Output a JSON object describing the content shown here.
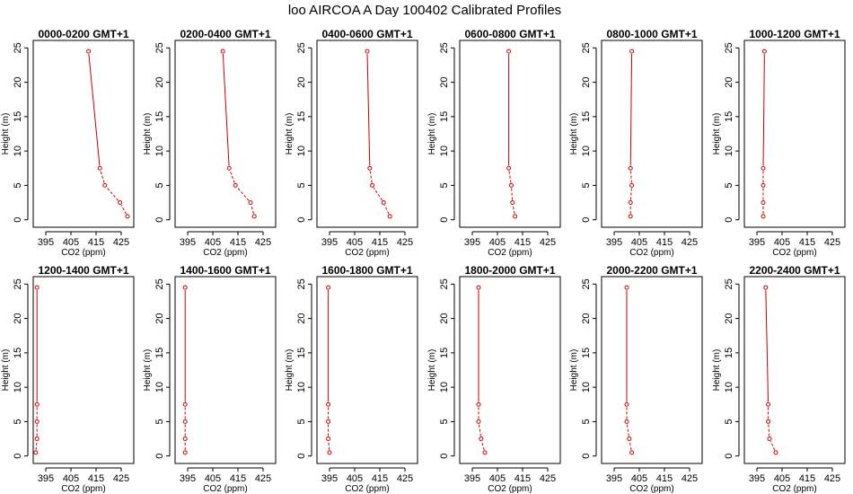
{
  "window_title": "loo AIRCOA A  Day 100402  Calibrated Profiles",
  "colors": {
    "series": "#cc0000",
    "axes": "#000000",
    "background": "#ffffff"
  },
  "chart_data": [
    {
      "type": "line",
      "title": "0000-0200 GMT+1",
      "xlabel": "CO2 (ppm)",
      "ylabel": "Height (m)",
      "xlim": [
        390,
        430
      ],
      "ylim": [
        0,
        25
      ],
      "xticks": [
        395,
        405,
        415,
        425
      ],
      "yticks": [
        0,
        5,
        10,
        15,
        20,
        25
      ],
      "x": [
        427.5,
        424.5,
        418.5,
        416.5,
        412
      ],
      "y": [
        0.5,
        2.5,
        5,
        7.5,
        24.5
      ]
    },
    {
      "type": "line",
      "title": "0200-0400 GMT+1",
      "xlabel": "CO2 (ppm)",
      "ylabel": "Height (m)",
      "xlim": [
        390,
        430
      ],
      "ylim": [
        0,
        25
      ],
      "xticks": [
        395,
        405,
        415,
        425
      ],
      "yticks": [
        0,
        5,
        10,
        15,
        20,
        25
      ],
      "x": [
        421.5,
        420,
        414,
        411.5,
        409
      ],
      "y": [
        0.5,
        2.5,
        5,
        7.5,
        24.5
      ]
    },
    {
      "type": "line",
      "title": "0400-0600 GMT+1",
      "xlabel": "CO2 (ppm)",
      "ylabel": "Height (m)",
      "xlim": [
        390,
        430
      ],
      "ylim": [
        0,
        25
      ],
      "xticks": [
        395,
        405,
        415,
        425
      ],
      "yticks": [
        0,
        5,
        10,
        15,
        20,
        25
      ],
      "x": [
        419,
        416.5,
        412,
        411,
        410
      ],
      "y": [
        0.5,
        2.5,
        5,
        7.5,
        24.5
      ]
    },
    {
      "type": "line",
      "title": "0600-0800 GMT+1",
      "xlabel": "CO2 (ppm)",
      "ylabel": "Height (m)",
      "xlim": [
        390,
        430
      ],
      "ylim": [
        0,
        25
      ],
      "xticks": [
        395,
        405,
        415,
        425
      ],
      "yticks": [
        0,
        5,
        10,
        15,
        20,
        25
      ],
      "x": [
        412,
        411,
        410.5,
        409.5,
        409.5
      ],
      "y": [
        0.5,
        2.5,
        5,
        7.5,
        24.5
      ]
    },
    {
      "type": "line",
      "title": "0800-1000 GMT+1",
      "xlabel": "CO2 (ppm)",
      "ylabel": "Height (m)",
      "xlim": [
        390,
        430
      ],
      "ylim": [
        0,
        25
      ],
      "xticks": [
        395,
        405,
        415,
        425
      ],
      "yticks": [
        0,
        5,
        10,
        15,
        20,
        25
      ],
      "x": [
        401.5,
        401.5,
        402,
        401.5,
        402
      ],
      "y": [
        0.5,
        2.5,
        5,
        7.5,
        24.5
      ]
    },
    {
      "type": "line",
      "title": "1000-1200 GMT+1",
      "xlabel": "CO2 (ppm)",
      "ylabel": "Height (m)",
      "xlim": [
        390,
        430
      ],
      "ylim": [
        0,
        25
      ],
      "xticks": [
        395,
        405,
        415,
        425
      ],
      "yticks": [
        0,
        5,
        10,
        15,
        20,
        25
      ],
      "x": [
        397.5,
        397.5,
        397.5,
        397.5,
        398
      ],
      "y": [
        0.5,
        2.5,
        5,
        7.5,
        24.5
      ]
    },
    {
      "type": "line",
      "title": "1200-1400 GMT+1",
      "xlabel": "CO2 (ppm)",
      "ylabel": "Height (m)",
      "xlim": [
        390,
        430
      ],
      "ylim": [
        0,
        25
      ],
      "xticks": [
        395,
        405,
        415,
        425
      ],
      "yticks": [
        0,
        5,
        10,
        15,
        20,
        25
      ],
      "x": [
        391,
        391.5,
        391.5,
        391.5,
        391.5
      ],
      "y": [
        0.5,
        2.5,
        5,
        7.5,
        24.5
      ]
    },
    {
      "type": "line",
      "title": "1400-1600 GMT+1",
      "xlabel": "CO2 (ppm)",
      "ylabel": "Height (m)",
      "xlim": [
        390,
        430
      ],
      "ylim": [
        0,
        25
      ],
      "xticks": [
        395,
        405,
        415,
        425
      ],
      "yticks": [
        0,
        5,
        10,
        15,
        20,
        25
      ],
      "x": [
        394,
        394,
        394,
        394,
        394
      ],
      "y": [
        0.5,
        2.5,
        5,
        7.5,
        24.5
      ]
    },
    {
      "type": "line",
      "title": "1600-1800 GMT+1",
      "xlabel": "CO2 (ppm)",
      "ylabel": "Height (m)",
      "xlim": [
        390,
        430
      ],
      "ylim": [
        0,
        25
      ],
      "xticks": [
        395,
        405,
        415,
        425
      ],
      "yticks": [
        0,
        5,
        10,
        15,
        20,
        25
      ],
      "x": [
        395,
        394.5,
        394.5,
        394.5,
        394.5
      ],
      "y": [
        0.5,
        2.5,
        5,
        7.5,
        24.5
      ]
    },
    {
      "type": "line",
      "title": "1800-2000 GMT+1",
      "xlabel": "CO2 (ppm)",
      "ylabel": "Height (m)",
      "xlim": [
        390,
        430
      ],
      "ylim": [
        0,
        25
      ],
      "xticks": [
        395,
        405,
        415,
        425
      ],
      "yticks": [
        0,
        5,
        10,
        15,
        20,
        25
      ],
      "x": [
        400,
        398.5,
        397.5,
        397.5,
        397.5
      ],
      "y": [
        0.5,
        2.5,
        5,
        7.5,
        24.5
      ]
    },
    {
      "type": "line",
      "title": "2000-2200 GMT+1",
      "xlabel": "CO2 (ppm)",
      "ylabel": "Height (m)",
      "xlim": [
        390,
        430
      ],
      "ylim": [
        0,
        25
      ],
      "xticks": [
        395,
        405,
        415,
        425
      ],
      "yticks": [
        0,
        5,
        10,
        15,
        20,
        25
      ],
      "x": [
        402,
        401,
        400,
        400,
        400
      ],
      "y": [
        0.5,
        2.5,
        5,
        7.5,
        24.5
      ]
    },
    {
      "type": "line",
      "title": "2200-2400 GMT+1",
      "xlabel": "CO2 (ppm)",
      "ylabel": "Height (m)",
      "xlim": [
        390,
        430
      ],
      "ylim": [
        0,
        25
      ],
      "xticks": [
        395,
        405,
        415,
        425
      ],
      "yticks": [
        0,
        5,
        10,
        15,
        20,
        25
      ],
      "x": [
        402.5,
        400,
        399.5,
        399.5,
        398.5
      ],
      "y": [
        0.5,
        2.5,
        5,
        7.5,
        24.5
      ]
    }
  ]
}
